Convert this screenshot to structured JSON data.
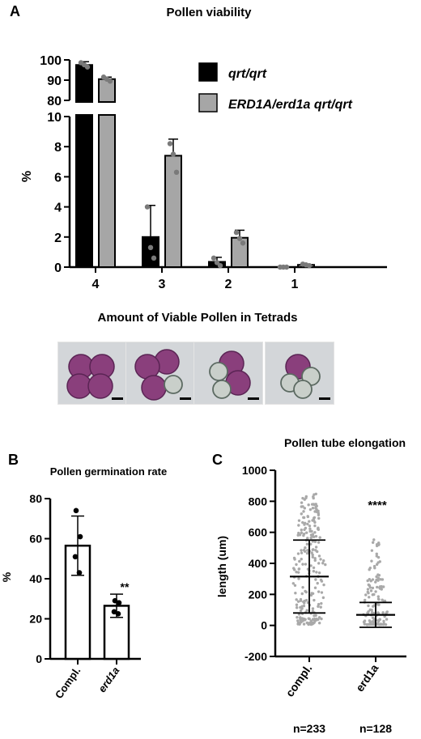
{
  "colors": {
    "black_bar": "#000000",
    "grey_bar": "#a6a6a6",
    "dot": "#7a7a7a",
    "pollen": "#8a3f7c",
    "pollen_dark": "#5a2454",
    "background_micro": "#d3d6d9"
  },
  "panels": {
    "a": {
      "letter": "A",
      "title": "Pollen viability",
      "ylabel": "%",
      "subtitle": "Amount of Viable Pollen in Tetrads"
    },
    "b": {
      "letter": "B",
      "title": "Pollen germination rate",
      "ylabel": "%"
    },
    "c": {
      "letter": "C",
      "title": "Pollen tube elongation",
      "ylabel": "length (um)",
      "n_labels": [
        "n=233",
        "n=128"
      ]
    }
  },
  "chart_data": [
    {
      "type": "bar",
      "panel": "A",
      "title": "Pollen viability",
      "xlabel": "",
      "ylabel": "%",
      "categories": [
        "4",
        "3",
        "2",
        "1"
      ],
      "broken_axis": true,
      "ylim_lower": [
        0,
        10
      ],
      "ylim_upper": [
        80,
        100
      ],
      "yticks_lower": [
        "0",
        "2",
        "4",
        "6",
        "8",
        "10"
      ],
      "yticks_upper": [
        "80",
        "90",
        "100"
      ],
      "series": [
        {
          "name": "qrt/qrt",
          "color": "#000000",
          "values": [
            97.5,
            2.0,
            0.35,
            0.0
          ],
          "errors": [
            1.6,
            2.1,
            0.3,
            0.0
          ],
          "points": [
            [
              98.6,
              97.6,
              96.5
            ],
            [
              4.0,
              1.3,
              0.6
            ],
            [
              0.6,
              0.3,
              0.1
            ],
            [
              0,
              0,
              0
            ]
          ]
        },
        {
          "name": "ERD1A/erd1a qrt/qrt",
          "color": "#a6a6a6",
          "values": [
            90.5,
            7.4,
            1.95,
            0.15
          ],
          "errors": [
            1.0,
            1.1,
            0.5,
            0.05
          ],
          "points": [
            [
              91.5,
              90.5,
              89.5
            ],
            [
              8.2,
              7.5,
              6.3
            ],
            [
              2.3,
              1.9,
              1.6
            ],
            [
              0.2,
              0.15,
              0.1
            ]
          ]
        }
      ],
      "legend": "top-right"
    },
    {
      "type": "bar",
      "panel": "B",
      "title": "Pollen germination rate",
      "xlabel": "",
      "ylabel": "%",
      "categories": [
        "Compl.",
        "erd1a"
      ],
      "values": [
        56.5,
        26.5
      ],
      "errors": [
        14.8,
        5.8
      ],
      "points": [
        [
          74,
          61,
          51,
          43
        ],
        [
          29,
          28,
          23.5,
          22.5
        ]
      ],
      "significance": [
        "",
        "**"
      ],
      "ylim": [
        0,
        80
      ],
      "yticks": [
        "0",
        "20",
        "40",
        "60",
        "80"
      ]
    },
    {
      "type": "scatter",
      "panel": "C",
      "title": "Pollen tube elongation",
      "xlabel": "",
      "ylabel": "length (um)",
      "categories": [
        "compl.",
        "erd1a"
      ],
      "means": [
        315,
        68
      ],
      "sd": [
        235,
        80
      ],
      "n": [
        233,
        128
      ],
      "max_values": [
        860,
        570
      ],
      "significance": [
        "",
        "****"
      ],
      "ylim": [
        -200,
        1000
      ],
      "yticks": [
        "-200",
        "0",
        "200",
        "400",
        "600",
        "800",
        "1000"
      ]
    }
  ]
}
